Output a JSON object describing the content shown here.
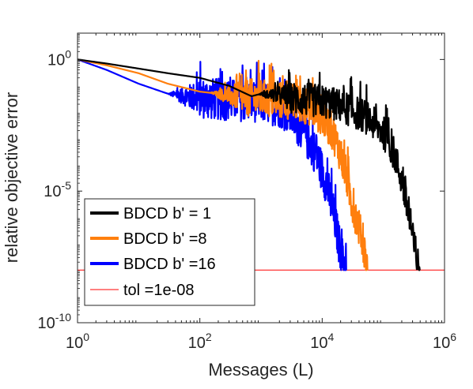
{
  "chart_data": {
    "type": "line",
    "xlabel": "Messages (L)",
    "ylabel": "relative objective error",
    "xscale": "log",
    "yscale": "log",
    "xlim": [
      1,
      1000000
    ],
    "ylim": [
      1e-10,
      10
    ],
    "x_ticks": [
      {
        "value": 1,
        "base": "10",
        "exp": "0"
      },
      {
        "value": 100,
        "base": "10",
        "exp": "2"
      },
      {
        "value": 10000,
        "base": "10",
        "exp": "4"
      },
      {
        "value": 1000000,
        "base": "10",
        "exp": "6"
      }
    ],
    "y_ticks": [
      {
        "value": 1,
        "base": "10",
        "exp": "0"
      },
      {
        "value": 1e-05,
        "base": "10",
        "exp": "-5"
      },
      {
        "value": 1e-10,
        "base": "10",
        "exp": "-10"
      }
    ],
    "grid": false,
    "legend_position": "bottom-left",
    "series": [
      {
        "name": "BDCD b' = 1",
        "color": "#000000",
        "noisy_from": 900,
        "noise_amp": 0.8,
        "x": [
          1,
          3,
          10,
          30,
          100,
          300,
          700,
          1000,
          2000,
          3000,
          5000,
          10000,
          20000,
          50000,
          100000,
          150000,
          200000,
          250000,
          300000,
          350000,
          400000
        ],
        "y": [
          1,
          0.7,
          0.45,
          0.3,
          0.2,
          0.1,
          0.04,
          0.05,
          0.045,
          0.04,
          0.035,
          0.03,
          0.02,
          0.008,
          0.002,
          0.0003,
          3e-05,
          2e-06,
          2e-07,
          3e-08,
          1e-08
        ]
      },
      {
        "name": "BDCD b' =8",
        "color": "#ff7f0e",
        "noisy_from": 150,
        "noise_amp": 0.9,
        "x": [
          1,
          3,
          10,
          30,
          100,
          300,
          1000,
          3000,
          6000,
          10000,
          15000,
          20000,
          25000,
          30000,
          40000,
          50000,
          55000
        ],
        "y": [
          1,
          0.6,
          0.3,
          0.12,
          0.06,
          0.045,
          0.04,
          0.03,
          0.02,
          0.008,
          0.002,
          0.0003,
          4e-05,
          5e-06,
          5e-07,
          5e-08,
          1e-08
        ]
      },
      {
        "name": "BDCD b' =16",
        "color": "#0000ff",
        "noisy_from": 30,
        "noise_amp": 1.0,
        "x": [
          1,
          3,
          10,
          30,
          100,
          300,
          1000,
          2000,
          3000,
          5000,
          8000,
          12000,
          16000,
          20000,
          25000
        ],
        "y": [
          1,
          0.4,
          0.12,
          0.05,
          0.04,
          0.035,
          0.03,
          0.02,
          0.01,
          0.002,
          0.0003,
          2e-05,
          1e-06,
          6e-08,
          1e-08
        ]
      },
      {
        "name": "tol =1e-08",
        "color": "#ff0000",
        "noisy_from": null,
        "noise_amp": 0,
        "x": [
          1,
          1000000
        ],
        "y": [
          1e-08,
          1e-08
        ]
      }
    ]
  }
}
